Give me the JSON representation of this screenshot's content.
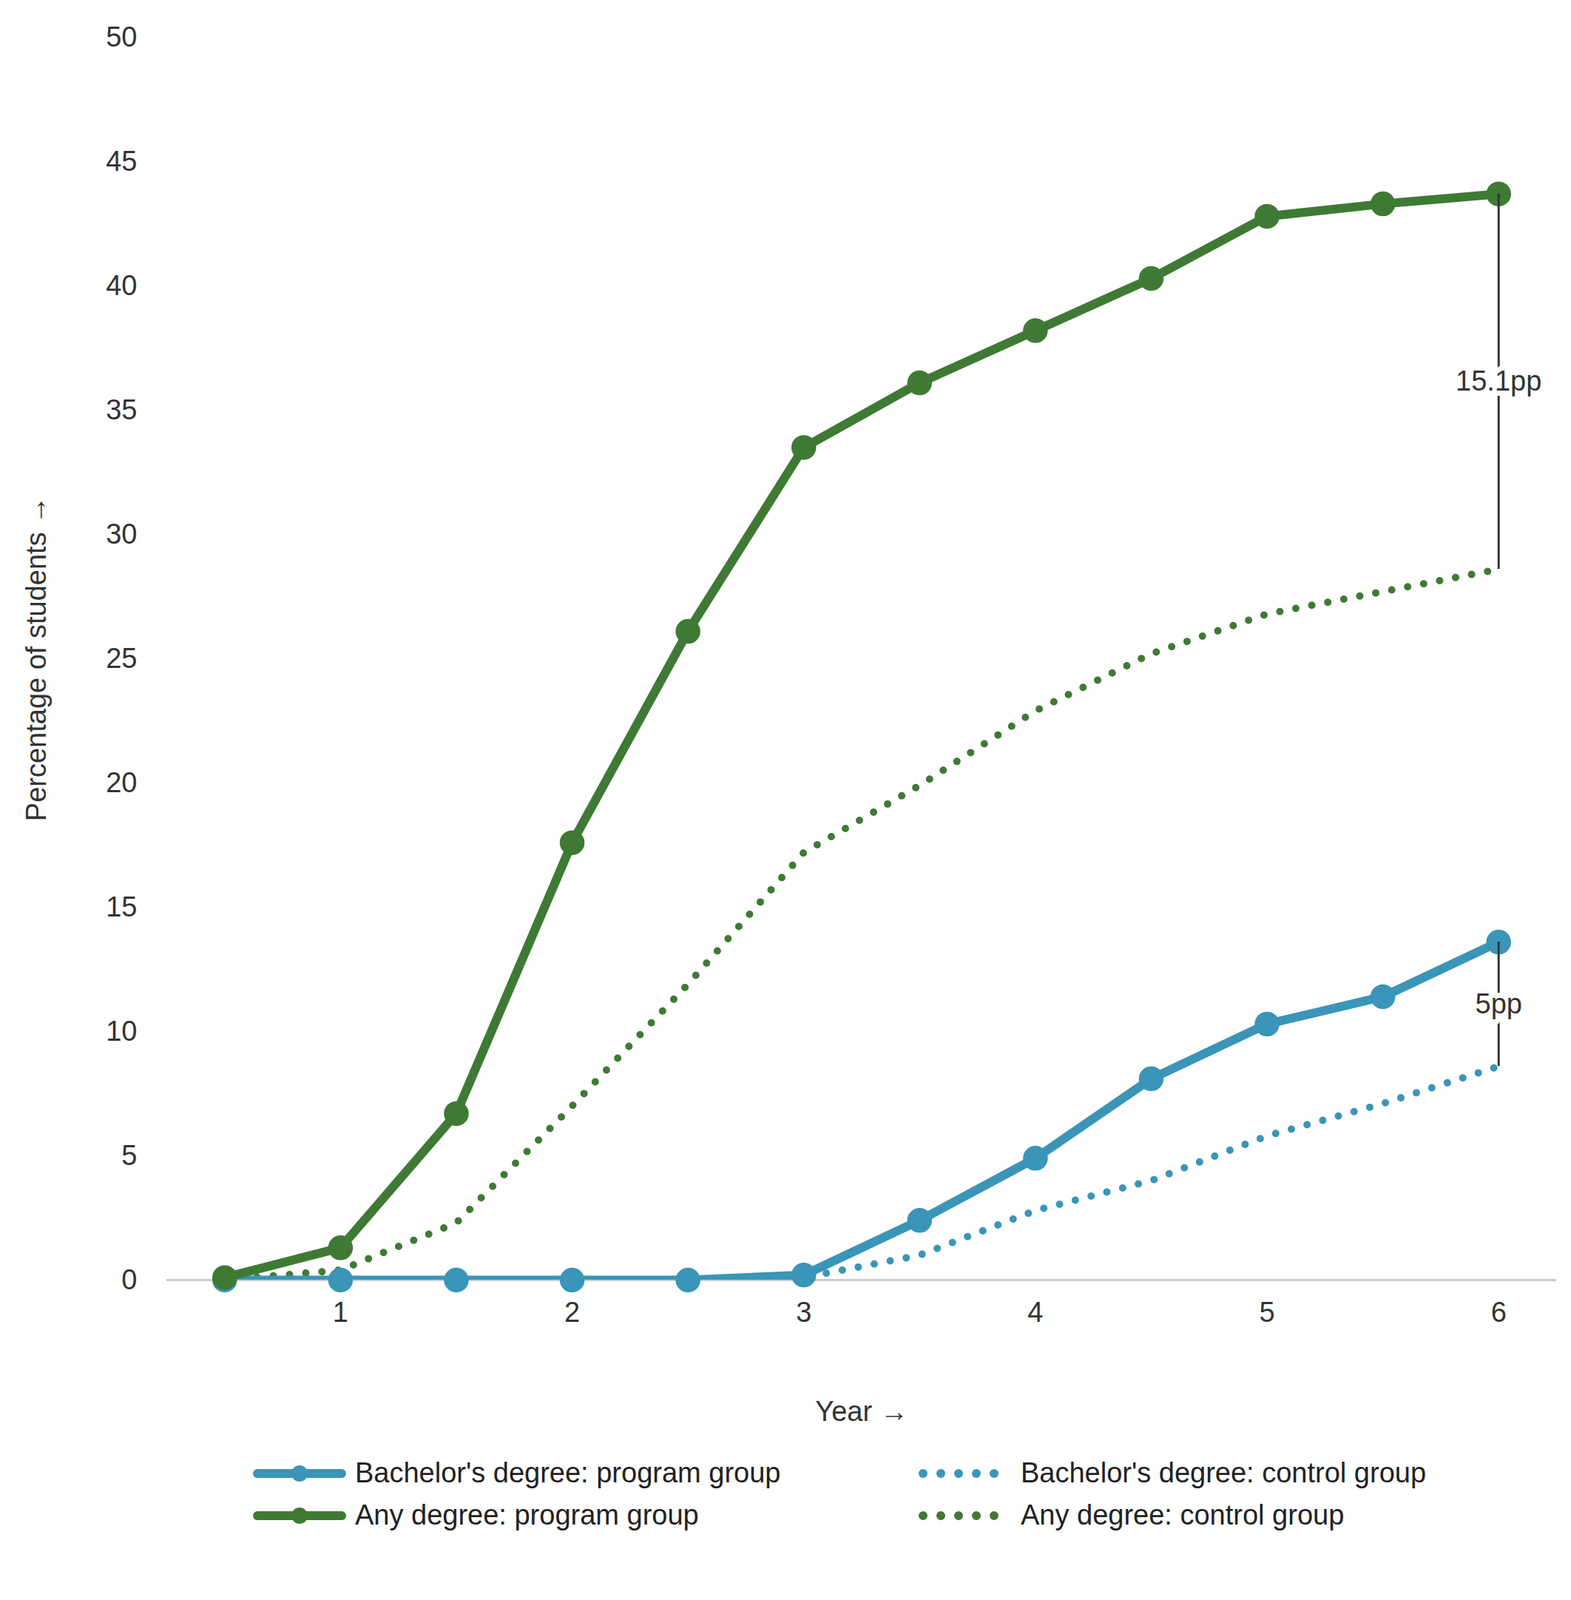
{
  "chart_data": {
    "type": "line",
    "x_label": "Year",
    "y_label": "Percentage of students",
    "x": [
      0.5,
      1,
      1.5,
      2,
      2.5,
      3,
      3.5,
      4,
      4.5,
      5,
      5.5,
      6
    ],
    "xlim": [
      0.25,
      6.25
    ],
    "xticks": [
      1,
      2,
      3,
      4,
      5,
      6
    ],
    "ylim": [
      0,
      50
    ],
    "yticks": [
      0,
      5,
      10,
      15,
      20,
      25,
      30,
      35,
      40,
      45,
      50
    ],
    "grid": false,
    "legend": "bottom",
    "series": [
      {
        "name": "Bachelor's degree: program group",
        "color": "#3a95b8",
        "marker": "circle",
        "line_style": "solid",
        "values": [
          0,
          0,
          0,
          0,
          0,
          0.2,
          2.4,
          4.9,
          8.1,
          10.3,
          11.4,
          13.6
        ]
      },
      {
        "name": "Bachelor's degree: control group",
        "color": "#3a95b8",
        "marker": "none",
        "line_style": "dotted",
        "values": [
          0,
          0,
          0,
          0,
          0,
          0.1,
          1.0,
          2.8,
          4.0,
          5.8,
          7.1,
          8.6
        ]
      },
      {
        "name": "Any degree: program group",
        "color": "#3f7a35",
        "marker": "circle",
        "line_style": "solid",
        "values": [
          0.1,
          1.3,
          6.7,
          17.6,
          26.1,
          33.5,
          36.1,
          38.2,
          40.3,
          42.8,
          43.3,
          43.7
        ]
      },
      {
        "name": "Any degree: control group",
        "color": "#3f7a35",
        "marker": "none",
        "line_style": "dotted",
        "values": [
          0,
          0.4,
          2.3,
          7.0,
          11.9,
          17.2,
          19.9,
          22.9,
          25.2,
          26.8,
          27.7,
          28.6
        ]
      }
    ],
    "annotations": [
      {
        "text": "15.1pp",
        "x": 6,
        "y1": 28.6,
        "y2": 43.7
      },
      {
        "text": "5pp",
        "x": 6,
        "y1": 8.6,
        "y2": 13.6
      }
    ]
  }
}
